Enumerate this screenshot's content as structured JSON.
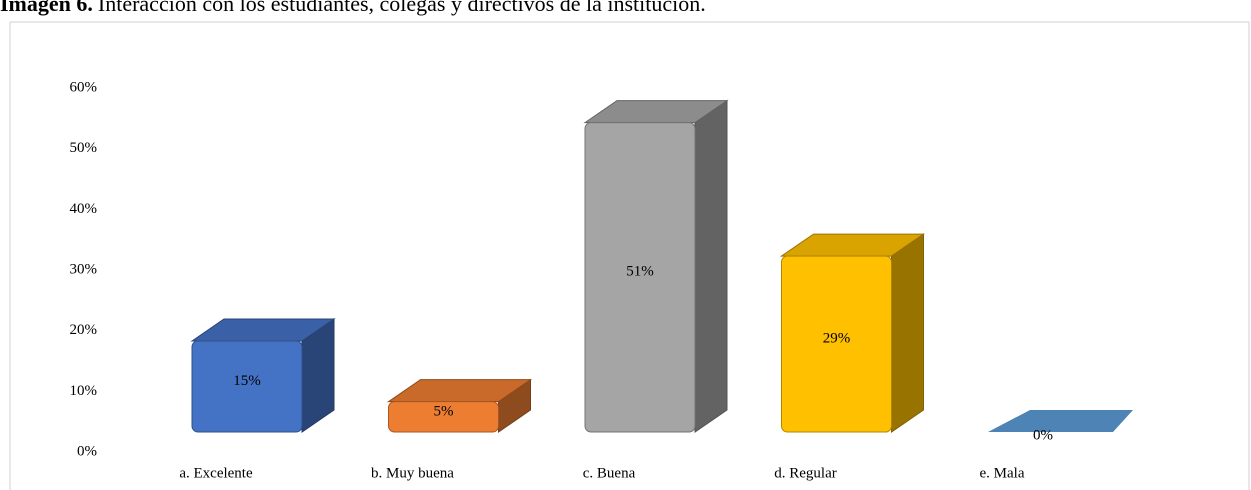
{
  "chart_data": {
    "type": "bar3d",
    "title_label": "Imagen 6.",
    "title": "Interacción con los estudiantes, colegas y directivos de la institución.",
    "categories": [
      "a. Excelente",
      "b. Muy buena",
      "c. Buena",
      "d. Regular",
      "e. Mala"
    ],
    "values": [
      15,
      5,
      51,
      29,
      0
    ],
    "value_labels": [
      "15%",
      "5%",
      "51%",
      "29%",
      "0%"
    ],
    "colors": [
      "#4472c4",
      "#ed7d31",
      "#a5a5a5",
      "#ffc000",
      "#5b9bd5"
    ],
    "ylim": [
      0,
      60
    ],
    "yticks": [
      {
        "value": 0,
        "label": "0%"
      },
      {
        "value": 10,
        "label": "10%"
      },
      {
        "value": 20,
        "label": "20%"
      },
      {
        "value": 30,
        "label": "30%"
      },
      {
        "value": 40,
        "label": "40%"
      },
      {
        "value": 50,
        "label": "50%"
      },
      {
        "value": 60,
        "label": "60%"
      }
    ],
    "grid": false
  }
}
